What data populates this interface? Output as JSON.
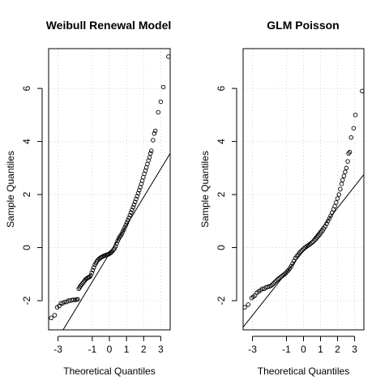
{
  "chart_data": [
    {
      "type": "scatter",
      "title": "Weibull Renewal Model",
      "xlabel": "Theoretical Quantiles",
      "ylabel": "Sample Quantiles",
      "xlim": [
        -3.55,
        3.55
      ],
      "ylim": [
        -3.1,
        7.5
      ],
      "xticks": [
        -3,
        -1,
        0,
        1,
        2,
        3
      ],
      "xtick_labels": [
        "-3",
        "-1",
        "0",
        "1",
        "2",
        "3"
      ],
      "yticks": [
        -2,
        0,
        2,
        4,
        6
      ],
      "ytick_labels": [
        "-2",
        "0",
        "2",
        "4",
        "6"
      ],
      "grid": true,
      "reference_line": {
        "x": [
          -3.55,
          3.55
        ],
        "y": [
          -4.0,
          3.55
        ]
      },
      "series": [
        {
          "points": [
            [
              -3.4,
              -2.65
            ],
            [
              -3.2,
              -2.55
            ],
            [
              -3.05,
              -2.25
            ],
            [
              -2.93,
              -2.2
            ],
            [
              -2.83,
              -2.1
            ],
            [
              -2.73,
              -2.1
            ],
            [
              -2.62,
              -2.05
            ],
            [
              -2.5,
              -2.05
            ],
            [
              -2.4,
              -2.0
            ],
            [
              -2.3,
              -2.0
            ],
            [
              -2.2,
              -1.98
            ],
            [
              -2.1,
              -1.97
            ],
            [
              -2.0,
              -1.97
            ],
            [
              -1.92,
              -1.96
            ],
            [
              -1.85,
              -1.95
            ],
            [
              -1.79,
              -1.55
            ],
            [
              -1.74,
              -1.5
            ],
            [
              -1.69,
              -1.45
            ],
            [
              -1.63,
              -1.4
            ],
            [
              -1.57,
              -1.35
            ],
            [
              -1.51,
              -1.3
            ],
            [
              -1.45,
              -1.25
            ],
            [
              -1.39,
              -1.2
            ],
            [
              -1.33,
              -1.17
            ],
            [
              -1.27,
              -1.14
            ],
            [
              -1.21,
              -1.12
            ],
            [
              -1.15,
              -1.1
            ],
            [
              -1.09,
              -1.05
            ],
            [
              -1.03,
              -0.95
            ],
            [
              -0.97,
              -0.85
            ],
            [
              -0.91,
              -0.75
            ],
            [
              -0.85,
              -0.65
            ],
            [
              -0.79,
              -0.58
            ],
            [
              -0.73,
              -0.52
            ],
            [
              -0.67,
              -0.47
            ],
            [
              -0.61,
              -0.43
            ],
            [
              -0.55,
              -0.4
            ],
            [
              -0.49,
              -0.37
            ],
            [
              -0.43,
              -0.35
            ],
            [
              -0.37,
              -0.33
            ],
            [
              -0.31,
              -0.31
            ],
            [
              -0.25,
              -0.3
            ],
            [
              -0.19,
              -0.28
            ],
            [
              -0.13,
              -0.27
            ],
            [
              -0.07,
              -0.25
            ],
            [
              0.0,
              -0.23
            ],
            [
              0.06,
              -0.2
            ],
            [
              0.12,
              -0.17
            ],
            [
              0.18,
              -0.13
            ],
            [
              0.24,
              -0.08
            ],
            [
              0.3,
              -0.03
            ],
            [
              0.36,
              0.05
            ],
            [
              0.42,
              0.15
            ],
            [
              0.48,
              0.25
            ],
            [
              0.54,
              0.33
            ],
            [
              0.6,
              0.4
            ],
            [
              0.66,
              0.45
            ],
            [
              0.72,
              0.52
            ],
            [
              0.78,
              0.6
            ],
            [
              0.84,
              0.68
            ],
            [
              0.9,
              0.76
            ],
            [
              0.96,
              0.85
            ],
            [
              1.02,
              0.94
            ],
            [
              1.08,
              1.03
            ],
            [
              1.14,
              1.12
            ],
            [
              1.2,
              1.22
            ],
            [
              1.26,
              1.32
            ],
            [
              1.32,
              1.42
            ],
            [
              1.38,
              1.52
            ],
            [
              1.44,
              1.62
            ],
            [
              1.5,
              1.72
            ],
            [
              1.56,
              1.83
            ],
            [
              1.62,
              1.94
            ],
            [
              1.68,
              2.05
            ],
            [
              1.74,
              2.16
            ],
            [
              1.8,
              2.28
            ],
            [
              1.86,
              2.4
            ],
            [
              1.92,
              2.52
            ],
            [
              1.98,
              2.65
            ],
            [
              2.04,
              2.78
            ],
            [
              2.1,
              2.9
            ],
            [
              2.16,
              3.02
            ],
            [
              2.22,
              3.15
            ],
            [
              2.28,
              3.28
            ],
            [
              2.34,
              3.4
            ],
            [
              2.4,
              3.55
            ],
            [
              2.45,
              3.65
            ],
            [
              2.55,
              4.05
            ],
            [
              2.62,
              4.3
            ],
            [
              2.68,
              4.4
            ],
            [
              2.85,
              5.1
            ],
            [
              3.0,
              5.5
            ],
            [
              3.15,
              6.05
            ],
            [
              3.45,
              7.2
            ]
          ]
        }
      ]
    },
    {
      "type": "scatter",
      "title": "GLM Poisson",
      "xlabel": "Theoretical Quantiles",
      "ylabel": "Sample Quantiles",
      "xlim": [
        -3.55,
        3.55
      ],
      "ylim": [
        -3.1,
        7.5
      ],
      "xticks": [
        -3,
        -1,
        0,
        1,
        2,
        3
      ],
      "xtick_labels": [
        "-3",
        "-1",
        "0",
        "1",
        "2",
        "3"
      ],
      "yticks": [
        -2,
        0,
        2,
        4,
        6
      ],
      "ytick_labels": [
        "-2",
        "0",
        "2",
        "4",
        "6"
      ],
      "grid": true,
      "reference_line": {
        "x": [
          -3.55,
          3.55
        ],
        "y": [
          -3.0,
          2.75
        ]
      },
      "series": [
        {
          "points": [
            [
              -3.45,
              -2.25
            ],
            [
              -3.25,
              -2.15
            ],
            [
              -3.05,
              -1.9
            ],
            [
              -2.95,
              -1.85
            ],
            [
              -2.85,
              -1.8
            ],
            [
              -2.74,
              -1.7
            ],
            [
              -2.63,
              -1.65
            ],
            [
              -2.52,
              -1.6
            ],
            [
              -2.41,
              -1.55
            ],
            [
              -2.3,
              -1.55
            ],
            [
              -2.2,
              -1.5
            ],
            [
              -2.1,
              -1.48
            ],
            [
              -2.0,
              -1.46
            ],
            [
              -1.92,
              -1.44
            ],
            [
              -1.84,
              -1.4
            ],
            [
              -1.76,
              -1.35
            ],
            [
              -1.68,
              -1.3
            ],
            [
              -1.6,
              -1.25
            ],
            [
              -1.52,
              -1.2
            ],
            [
              -1.44,
              -1.16
            ],
            [
              -1.36,
              -1.12
            ],
            [
              -1.28,
              -1.08
            ],
            [
              -1.2,
              -1.04
            ],
            [
              -1.12,
              -1.0
            ],
            [
              -1.04,
              -0.96
            ],
            [
              -0.96,
              -0.9
            ],
            [
              -0.88,
              -0.85
            ],
            [
              -0.8,
              -0.78
            ],
            [
              -0.72,
              -0.7
            ],
            [
              -0.64,
              -0.6
            ],
            [
              -0.56,
              -0.5
            ],
            [
              -0.48,
              -0.4
            ],
            [
              -0.4,
              -0.33
            ],
            [
              -0.32,
              -0.27
            ],
            [
              -0.24,
              -0.2
            ],
            [
              -0.16,
              -0.15
            ],
            [
              -0.08,
              -0.1
            ],
            [
              0.0,
              -0.05
            ],
            [
              0.08,
              0.0
            ],
            [
              0.16,
              0.03
            ],
            [
              0.24,
              0.07
            ],
            [
              0.32,
              0.1
            ],
            [
              0.4,
              0.14
            ],
            [
              0.48,
              0.18
            ],
            [
              0.56,
              0.22
            ],
            [
              0.64,
              0.27
            ],
            [
              0.72,
              0.32
            ],
            [
              0.8,
              0.38
            ],
            [
              0.88,
              0.44
            ],
            [
              0.96,
              0.5
            ],
            [
              1.04,
              0.57
            ],
            [
              1.12,
              0.64
            ],
            [
              1.2,
              0.72
            ],
            [
              1.28,
              0.8
            ],
            [
              1.36,
              0.9
            ],
            [
              1.44,
              1.0
            ],
            [
              1.52,
              1.1
            ],
            [
              1.6,
              1.2
            ],
            [
              1.68,
              1.32
            ],
            [
              1.76,
              1.44
            ],
            [
              1.84,
              1.56
            ],
            [
              1.92,
              1.7
            ],
            [
              2.0,
              1.85
            ],
            [
              2.08,
              2.0
            ],
            [
              2.16,
              2.2
            ],
            [
              2.24,
              2.4
            ],
            [
              2.3,
              2.55
            ],
            [
              2.38,
              2.7
            ],
            [
              2.45,
              2.85
            ],
            [
              2.52,
              3.0
            ],
            [
              2.6,
              3.25
            ],
            [
              2.65,
              3.55
            ],
            [
              2.72,
              3.6
            ],
            [
              2.8,
              4.15
            ],
            [
              2.95,
              4.5
            ],
            [
              3.05,
              5.0
            ],
            [
              3.45,
              5.9
            ]
          ]
        }
      ]
    }
  ]
}
